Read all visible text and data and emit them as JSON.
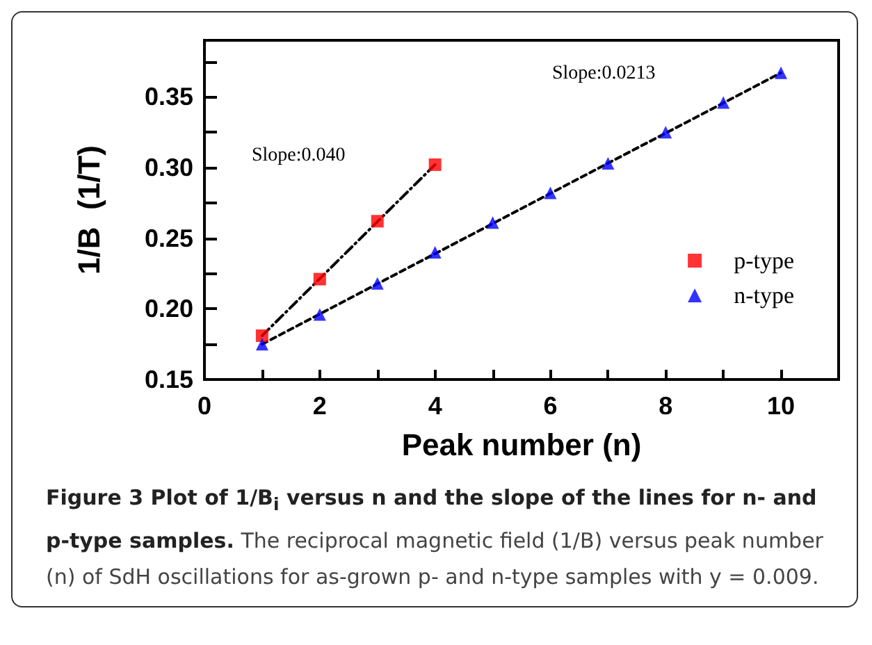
{
  "chart_data": {
    "type": "scatter",
    "title": "Figure 3 Plot of 1/B$_{i}$ versus n and the slope of the lines for n- and p-type samples.",
    "subtitle": "The reciprocal magnetic field (1/B) versus peak number (n) of SdH oscillations for as-grown p- and n-type samples with y = 0.009.",
    "xlabel": "Peak number (n)",
    "ylabel": "1/B  (1/T)",
    "xlim": [
      0,
      11
    ],
    "xticks": [
      0,
      {
        "value": 1,
        "label": null
      },
      2,
      {
        "value": 3,
        "label": null
      },
      4,
      {
        "value": 5,
        "label": null
      },
      6,
      {
        "value": 7,
        "label": null
      },
      8,
      {
        "value": 9,
        "label": null
      },
      10
    ],
    "ylim": [
      0.15,
      0.39
    ],
    "yticks": [
      0.15,
      {
        "value": 0.175,
        "label": null
      },
      {
        "value": 0.2,
        "label": "0.20"
      },
      {
        "value": 0.225,
        "label": null
      },
      0.25,
      {
        "value": 0.275,
        "label": null
      },
      {
        "value": 0.3,
        "label": "0.30"
      },
      {
        "value": 0.325,
        "label": null
      },
      0.35,
      {
        "value": 0.375,
        "label": null
      }
    ],
    "legend": "right",
    "grid": false,
    "series": [
      {
        "name": "p-type",
        "color": "#ff0000",
        "marker": "square",
        "x": [
          1,
          2,
          3,
          4
        ],
        "values": [
          0.181,
          0.221,
          0.262,
          0.302
        ]
      },
      {
        "name": "n-type",
        "color": "#0000ff",
        "marker": "triangle",
        "x": [
          1,
          2,
          3,
          4,
          5,
          6,
          7,
          8,
          9,
          10
        ],
        "values": [
          0.175,
          0.196,
          0.218,
          0.24,
          0.261,
          0.282,
          0.303,
          0.325,
          0.346,
          0.367
        ]
      },
      {
        "type": "line",
        "color": "#000000",
        "line_style": "dashdot",
        "marker": "none",
        "x": [
          1,
          4
        ],
        "values": [
          0.181,
          0.302
        ]
      },
      {
        "type": "line",
        "color": "#000000",
        "line_style": "dashed",
        "marker": "none",
        "x": [
          1,
          10
        ],
        "values": [
          0.175,
          0.367
        ]
      }
    ],
    "annotations": [
      "Slope:0.040",
      "Slope:0.0213"
    ]
  }
}
